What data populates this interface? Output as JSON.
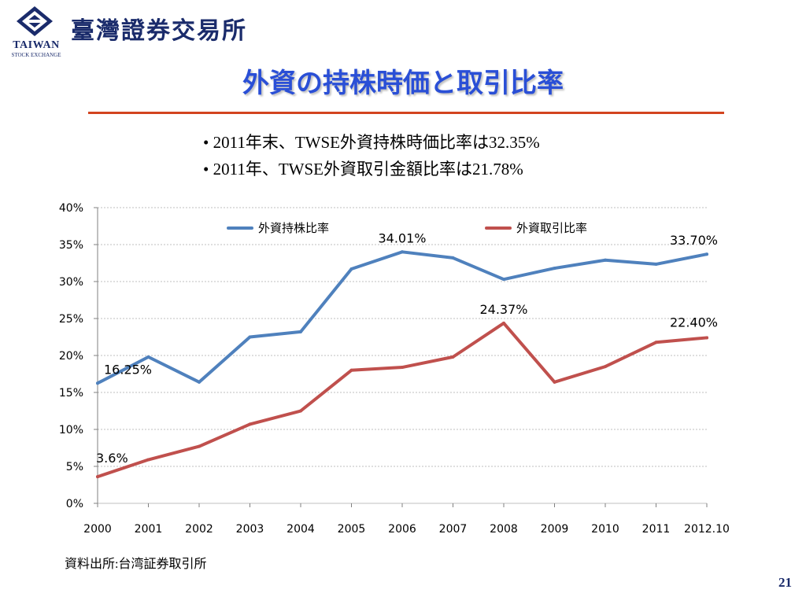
{
  "header": {
    "logo_en": "TAIWAN",
    "logo_sub": "STOCK EXCHANGE",
    "brand_cn": "臺灣證券交易所"
  },
  "slide": {
    "title": "外資の持株時価と取引比率",
    "bullets": [
      "• 2011年末、TWSE外資持株時価比率は32.35%",
      "• 2011年、TWSE外資取引金額比率は21.78%"
    ],
    "source": "資料出所:台湾証券取引所",
    "page_number": "21"
  },
  "chart_data": {
    "type": "line",
    "categories": [
      "2000",
      "2001",
      "2002",
      "2003",
      "2004",
      "2005",
      "2006",
      "2007",
      "2008",
      "2009",
      "2010",
      "2011",
      "2012.10"
    ],
    "ylim": [
      0,
      40
    ],
    "yticks": [
      "0%",
      "5%",
      "10%",
      "15%",
      "20%",
      "25%",
      "30%",
      "35%",
      "40%"
    ],
    "grid": true,
    "legend_position": "top",
    "series": [
      {
        "name": "外資持株比率",
        "color": "#4f81bd",
        "values": [
          16.25,
          19.8,
          16.4,
          22.5,
          23.2,
          31.7,
          34.01,
          33.2,
          30.3,
          31.8,
          32.9,
          32.35,
          33.7
        ]
      },
      {
        "name": "外資取引比率",
        "color": "#c0504d",
        "values": [
          3.6,
          5.9,
          7.7,
          10.7,
          12.5,
          18.0,
          18.4,
          19.8,
          24.37,
          16.4,
          18.5,
          21.78,
          22.4
        ]
      }
    ],
    "annotations": [
      {
        "series": 0,
        "index": 0,
        "text": "16.25%"
      },
      {
        "series": 0,
        "index": 6,
        "text": "34.01%"
      },
      {
        "series": 0,
        "index": 12,
        "text": "33.70%"
      },
      {
        "series": 1,
        "index": 0,
        "text": "3.6%"
      },
      {
        "series": 1,
        "index": 8,
        "text": "24.37%"
      },
      {
        "series": 1,
        "index": 12,
        "text": "22.40%"
      }
    ]
  }
}
